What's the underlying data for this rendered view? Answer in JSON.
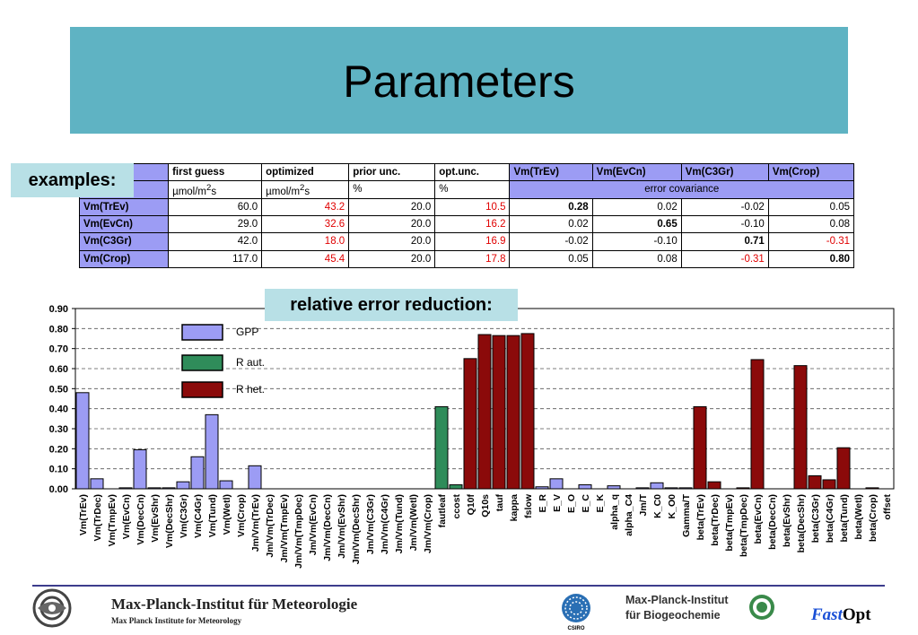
{
  "slide": {
    "title": "Parameters",
    "examples_label": "examples:",
    "relative_label": "relative error reduction:"
  },
  "table": {
    "header": [
      "first guess",
      "optimized",
      "prior unc.",
      "opt.unc.",
      "Vm(TrEv)",
      "Vm(EvCn)",
      "Vm(C3Gr)",
      "Vm(Crop)"
    ],
    "units": {
      "first_guess_a": "µmol/m",
      "first_guess_sup": "2",
      "first_guess_b": "s",
      "optimized_a": "µmol/m",
      "optimized_sup": "2",
      "optimized_b": "s",
      "prior": "%",
      "opt": "%",
      "cov": "error covariance"
    },
    "rows": [
      {
        "name": "Vm(TrEv)",
        "fg": "60.0",
        "opt": "43.2",
        "prior": "20.0",
        "optunc": "10.5",
        "c1": "0.28",
        "c2": "0.02",
        "c3": "-0.02",
        "c4": "0.05"
      },
      {
        "name": "Vm(EvCn)",
        "fg": "29.0",
        "opt": "32.6",
        "prior": "20.0",
        "optunc": "16.2",
        "c1": "0.02",
        "c2": "0.65",
        "c3": "-0.10",
        "c4": "0.08"
      },
      {
        "name": "Vm(C3Gr)",
        "fg": "42.0",
        "opt": "18.0",
        "prior": "20.0",
        "optunc": "16.9",
        "c1": "-0.02",
        "c2": "-0.10",
        "c3": "0.71",
        "c4": "-0.31"
      },
      {
        "name": "Vm(Crop)",
        "fg": "117.0",
        "opt": "45.4",
        "prior": "20.0",
        "optunc": "17.8",
        "c1": "0.05",
        "c2": "0.08",
        "c3": "-0.31",
        "c4": "0.80"
      }
    ]
  },
  "chart_data": {
    "type": "bar",
    "ylim": [
      0,
      0.9
    ],
    "yticks": [
      "0.00",
      "0.10",
      "0.20",
      "0.30",
      "0.40",
      "0.50",
      "0.60",
      "0.70",
      "0.80",
      "0.90"
    ],
    "grid": true,
    "legend_position": "top-left",
    "colors": {
      "GPP": "#9c9cf4",
      "R aut.": "#2f8c5a",
      "R het.": "#8b0a0a"
    },
    "legend": [
      "GPP",
      "R aut.",
      "R het."
    ],
    "categories": [
      "Vm(TrEv)",
      "Vm(TrDec)",
      "Vm(TmpEv)",
      "Vm(EvCn)",
      "Vm(DecCn)",
      "Vm(EvShr)",
      "Vm(DecShr)",
      "Vm(C3Gr)",
      "Vm(C4Gr)",
      "Vm(Tund)",
      "Vm(Wetl)",
      "Vm(Crop)",
      "Jm/Vm(TrEv)",
      "Jm/Vm(TrDec)",
      "Jm/Vm(TmpEv)",
      "Jm/Vm(TmpDec)",
      "Jm/Vm(EvCn)",
      "Jm/Vm(DecCn)",
      "Jm/Vm(EvShr)",
      "Jm/Vm(DecShr)",
      "Jm/Vm(C3Gr)",
      "Jm/Vm(C4Gr)",
      "Jm/Vm(Tund)",
      "Jm/Vm(Wetl)",
      "Jm/Vm(Crop)",
      "fautleaf",
      "ccost",
      "Q10f",
      "Q10s",
      "tauf",
      "kappa",
      "fslow",
      "E_R",
      "E_V",
      "E_O",
      "E_C",
      "E_K",
      "alpha_q",
      "alpha_C4",
      "Jm/T",
      "K_C0",
      "K_O0",
      "Gamma/T",
      "beta(TrEv)",
      "beta(TrDec)",
      "beta(TmpEv)",
      "beta(TmpDec)",
      "beta(EvCn)",
      "beta(DecCn)",
      "beta(EvShr)",
      "beta(DecShr)",
      "beta(C3Gr)",
      "beta(C4Gr)",
      "beta(Tund)",
      "beta(Wetl)",
      "beta(Crop)",
      "offset"
    ],
    "series_of_category": [
      "GPP",
      "GPP",
      "GPP",
      "GPP",
      "GPP",
      "GPP",
      "GPP",
      "GPP",
      "GPP",
      "GPP",
      "GPP",
      "GPP",
      "GPP",
      "GPP",
      "GPP",
      "GPP",
      "GPP",
      "GPP",
      "GPP",
      "GPP",
      "GPP",
      "GPP",
      "GPP",
      "GPP",
      "GPP",
      "R aut.",
      "R aut.",
      "R het.",
      "R het.",
      "R het.",
      "R het.",
      "R het.",
      "GPP",
      "GPP",
      "GPP",
      "GPP",
      "GPP",
      "GPP",
      "GPP",
      "GPP",
      "GPP",
      "GPP",
      "GPP",
      "R het.",
      "R het.",
      "R het.",
      "R het.",
      "R het.",
      "R het.",
      "R het.",
      "R het.",
      "R het.",
      "R het.",
      "R het.",
      "R het.",
      "R het.",
      "R het."
    ],
    "values": [
      0.48,
      0.05,
      0.0,
      0.005,
      0.195,
      0.005,
      0.005,
      0.035,
      0.16,
      0.37,
      0.04,
      0.0,
      0.115,
      0.0,
      0.0,
      0.0,
      0.0,
      0.0,
      0.0,
      0.0,
      0.0,
      0.0,
      0.0,
      0.0,
      0.0,
      0.41,
      0.02,
      0.65,
      0.77,
      0.765,
      0.765,
      0.775,
      0.01,
      0.05,
      0.0,
      0.02,
      0.0,
      0.015,
      0.0,
      0.005,
      0.03,
      0.005,
      0.005,
      0.41,
      0.035,
      0.0,
      0.005,
      0.645,
      0.0,
      0.0,
      0.615,
      0.065,
      0.045,
      0.205,
      0.0,
      0.005,
      0.0
    ]
  },
  "footer": {
    "mpim_name": "Max-Planck-Institut für Meteorologie",
    "mpim_sub": "Max Planck Institute for Meteorology",
    "csiro": "CSIRO",
    "mpibgc_line1": "Max-Planck-Institut",
    "mpibgc_line2": "für Biogeochemie",
    "fast": "Fast",
    "opt": "Opt"
  }
}
